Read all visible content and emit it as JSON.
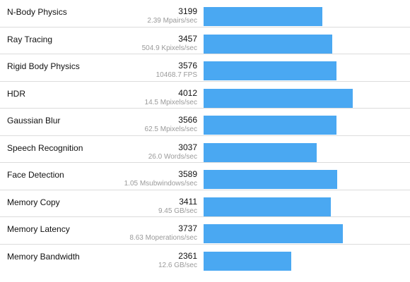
{
  "benchmarks": {
    "max_score": 4200,
    "bar_color": "#4aa8f2",
    "rows": [
      {
        "name": "N-Body Physics",
        "score": "3199",
        "metric": "2.39 Mpairs/sec"
      },
      {
        "name": "Ray Tracing",
        "score": "3457",
        "metric": "504.9 Kpixels/sec"
      },
      {
        "name": "Rigid Body Physics",
        "score": "3576",
        "metric": "10468.7 FPS"
      },
      {
        "name": "HDR",
        "score": "4012",
        "metric": "14.5 Mpixels/sec"
      },
      {
        "name": "Gaussian Blur",
        "score": "3566",
        "metric": "62.5 Mpixels/sec"
      },
      {
        "name": "Speech Recognition",
        "score": "3037",
        "metric": "26.0 Words/sec"
      },
      {
        "name": "Face Detection",
        "score": "3589",
        "metric": "1.05 Msubwindows/sec"
      },
      {
        "name": "Memory Copy",
        "score": "3411",
        "metric": "9.45 GB/sec"
      },
      {
        "name": "Memory Latency",
        "score": "3737",
        "metric": "8.63 Moperations/sec"
      },
      {
        "name": "Memory Bandwidth",
        "score": "2361",
        "metric": "12.6 GB/sec"
      }
    ]
  }
}
